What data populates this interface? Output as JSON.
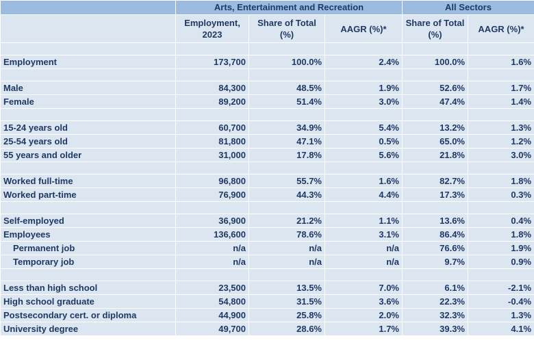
{
  "group_headers": {
    "sector": "Arts, Entertainment and Recreation",
    "all": "All Sectors"
  },
  "column_headers": {
    "employment": "Employment, 2023",
    "share_sector": "Share of Total (%)",
    "aagr_sector": "AAGR (%)*",
    "share_all": "Share of Total (%)",
    "aagr_all": "AAGR (%)*"
  },
  "rows": [
    {
      "label": "Employment",
      "employment": "173,700",
      "share": "100.0%",
      "aagr": "2.4%",
      "share_all": "100.0%",
      "aagr_all": "1.6%"
    },
    {
      "label": "Male",
      "employment": "84,300",
      "share": "48.5%",
      "aagr": "1.9%",
      "share_all": "52.6%",
      "aagr_all": "1.7%"
    },
    {
      "label": "Female",
      "employment": "89,200",
      "share": "51.4%",
      "aagr": "3.0%",
      "share_all": "47.4%",
      "aagr_all": "1.4%"
    },
    {
      "label": "15-24 years old",
      "employment": "60,700",
      "share": "34.9%",
      "aagr": "5.4%",
      "share_all": "13.2%",
      "aagr_all": "1.3%"
    },
    {
      "label": "25-54 years old",
      "employment": "81,800",
      "share": "47.1%",
      "aagr": "0.5%",
      "share_all": "65.0%",
      "aagr_all": "1.2%"
    },
    {
      "label": "55 years and older",
      "employment": "31,000",
      "share": "17.8%",
      "aagr": "5.6%",
      "share_all": "21.8%",
      "aagr_all": "3.0%"
    },
    {
      "label": "Worked full-time",
      "employment": "96,800",
      "share": "55.7%",
      "aagr": "1.6%",
      "share_all": "82.7%",
      "aagr_all": "1.8%"
    },
    {
      "label": "Worked part-time",
      "employment": "76,900",
      "share": "44.3%",
      "aagr": "4.4%",
      "share_all": "17.3%",
      "aagr_all": "0.3%"
    },
    {
      "label": "Self-employed",
      "employment": "36,900",
      "share": "21.2%",
      "aagr": "1.1%",
      "share_all": "13.6%",
      "aagr_all": "0.4%"
    },
    {
      "label": "Employees",
      "employment": "136,600",
      "share": "78.6%",
      "aagr": "3.1%",
      "share_all": "86.4%",
      "aagr_all": "1.8%"
    },
    {
      "label": "Permanent job",
      "employment": "n/a",
      "share": "n/a",
      "aagr": "n/a",
      "share_all": "76.6%",
      "aagr_all": "1.9%"
    },
    {
      "label": "Temporary job",
      "employment": "n/a",
      "share": "n/a",
      "aagr": "n/a",
      "share_all": "9.7%",
      "aagr_all": "0.9%"
    },
    {
      "label": "Less than high school",
      "employment": "23,500",
      "share": "13.5%",
      "aagr": "7.0%",
      "share_all": "6.1%",
      "aagr_all": "-2.1%"
    },
    {
      "label": "High school graduate",
      "employment": "54,800",
      "share": "31.5%",
      "aagr": "3.6%",
      "share_all": "22.3%",
      "aagr_all": "-0.4%"
    },
    {
      "label": "Postsecondary cert. or diploma",
      "employment": "44,900",
      "share": "25.8%",
      "aagr": "2.0%",
      "share_all": "32.3%",
      "aagr_all": "1.3%"
    },
    {
      "label": "University degree",
      "employment": "49,700",
      "share": "28.6%",
      "aagr": "1.7%",
      "share_all": "39.3%",
      "aagr_all": "4.1%"
    }
  ]
}
